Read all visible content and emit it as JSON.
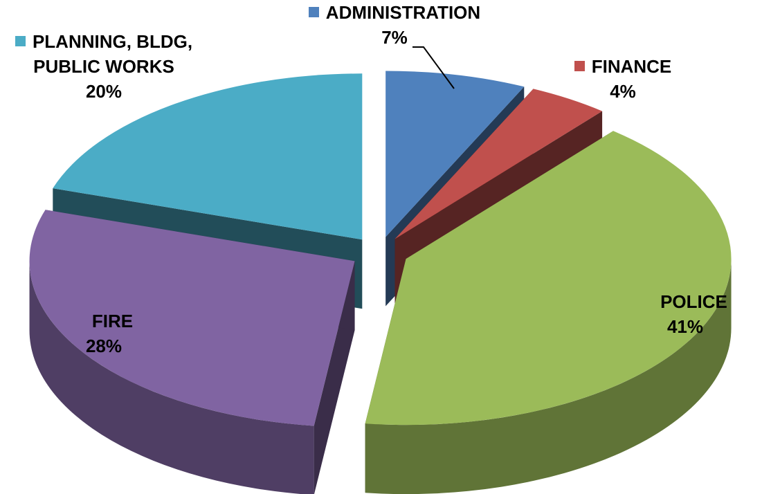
{
  "chart_data": {
    "type": "pie",
    "categories": [
      "ADMINISTRATION",
      "FINANCE",
      "POLICE",
      "FIRE",
      "PLANNING, BLDG, PUBLIC WORKS"
    ],
    "values": [
      7,
      4,
      41,
      28,
      20
    ],
    "value_labels": [
      "7%",
      "4%",
      "41%",
      "28%",
      "20%"
    ],
    "colors": [
      "#4f81bd",
      "#c0504d",
      "#9bbb59",
      "#8064a2",
      "#4bacc6"
    ]
  }
}
